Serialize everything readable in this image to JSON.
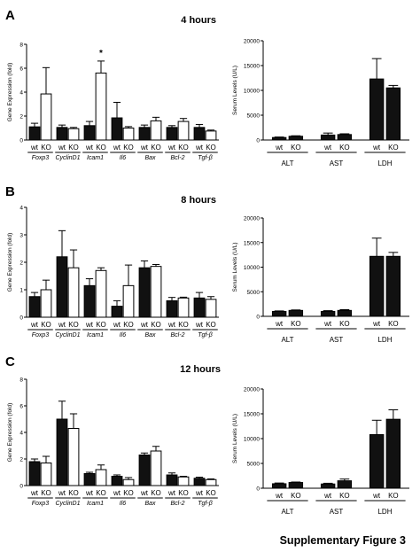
{
  "caption": "Supplementary Figure 3",
  "chart_data": [
    {
      "type": "bar",
      "panel": "A",
      "title": "4 hours",
      "ylabel": "Gene Expression (fold)",
      "ylim": [
        0,
        8
      ],
      "yticks": [
        "0",
        "2",
        "4",
        "6",
        "8"
      ],
      "genes": [
        "Foxp3",
        "CyclinD1",
        "Icam1",
        "Il6",
        "Bax",
        "Bcl-2",
        "Tgf-β"
      ],
      "pair_labels": [
        "wt",
        "KO"
      ],
      "series": [
        {
          "name": "wt",
          "values": [
            1.1,
            1.05,
            1.2,
            1.85,
            1.05,
            1.05,
            1.05
          ],
          "errors": [
            0.3,
            0.2,
            0.35,
            1.3,
            0.2,
            0.15,
            0.25
          ]
        },
        {
          "name": "KO",
          "values": [
            3.85,
            0.95,
            5.6,
            1.0,
            1.6,
            1.55,
            0.75
          ],
          "errors": [
            2.2,
            0.1,
            1.0,
            0.12,
            0.3,
            0.25,
            0.08
          ]
        }
      ],
      "annotations": [
        {
          "gene": "Icam1",
          "series": "KO",
          "text": "*"
        }
      ]
    },
    {
      "type": "bar",
      "panel": "A",
      "ylabel": "Serum Levels (U/L)",
      "ylim": [
        0,
        20000
      ],
      "yticks": [
        "0",
        "5000",
        "10000",
        "15000",
        "20000"
      ],
      "groups": [
        "ALT",
        "AST",
        "LDH"
      ],
      "pair_labels": [
        "wt",
        "KO"
      ],
      "series": [
        {
          "name": "wt",
          "values": [
            500,
            1000,
            12300
          ],
          "errors": [
            100,
            400,
            4100
          ]
        },
        {
          "name": "KO",
          "values": [
            750,
            1100,
            10500
          ],
          "errors": [
            100,
            150,
            500
          ]
        }
      ]
    },
    {
      "type": "bar",
      "panel": "B",
      "title": "8 hours",
      "ylabel": "Gene Expression (fold)",
      "ylim": [
        0,
        4
      ],
      "yticks": [
        "0",
        "1",
        "2",
        "3",
        "4"
      ],
      "genes": [
        "Foxp3",
        "CyclinD1",
        "Icam1",
        "Il6",
        "Bax",
        "Bcl-2",
        "Tgf-β"
      ],
      "pair_labels": [
        "wt",
        "KO"
      ],
      "series": [
        {
          "name": "wt",
          "values": [
            0.75,
            2.2,
            1.15,
            0.4,
            1.8,
            0.6,
            0.7
          ],
          "errors": [
            0.15,
            0.95,
            0.25,
            0.2,
            0.25,
            0.12,
            0.2
          ]
        },
        {
          "name": "KO",
          "values": [
            1.0,
            1.8,
            1.7,
            1.15,
            1.85,
            0.7,
            0.65
          ],
          "errors": [
            0.35,
            0.65,
            0.1,
            0.75,
            0.07,
            0.03,
            0.1
          ]
        }
      ]
    },
    {
      "type": "bar",
      "panel": "B",
      "ylabel": "Serum Levels (U/L)",
      "ylim": [
        0,
        20000
      ],
      "yticks": [
        "0",
        "5000",
        "10000",
        "15000",
        "20000"
      ],
      "groups": [
        "ALT",
        "AST",
        "LDH"
      ],
      "pair_labels": [
        "wt",
        "KO"
      ],
      "series": [
        {
          "name": "wt",
          "values": [
            1000,
            1000,
            12200
          ],
          "errors": [
            100,
            150,
            3700
          ]
        },
        {
          "name": "KO",
          "values": [
            1200,
            1200,
            12200
          ],
          "errors": [
            100,
            150,
            800
          ]
        }
      ]
    },
    {
      "type": "bar",
      "panel": "C",
      "title": "12 hours",
      "ylabel": "Gene Expression (fold)",
      "ylim": [
        0,
        8
      ],
      "yticks": [
        "0",
        "2",
        "4",
        "6",
        "8"
      ],
      "genes": [
        "Foxp3",
        "CyclinD1",
        "Icam1",
        "Il6",
        "Bax",
        "Bcl-2",
        "Tgf-β"
      ],
      "pair_labels": [
        "wt",
        "KO"
      ],
      "series": [
        {
          "name": "wt",
          "values": [
            1.8,
            5.0,
            0.9,
            0.7,
            2.3,
            0.8,
            0.55
          ],
          "errors": [
            0.2,
            1.35,
            0.1,
            0.1,
            0.15,
            0.15,
            0.08
          ]
        },
        {
          "name": "KO",
          "values": [
            1.7,
            4.3,
            1.2,
            0.45,
            2.6,
            0.65,
            0.45
          ],
          "errors": [
            0.5,
            1.1,
            0.35,
            0.15,
            0.35,
            0.05,
            0.05
          ]
        }
      ]
    },
    {
      "type": "bar",
      "panel": "C",
      "ylabel": "Serum Levels (U/L)",
      "ylim": [
        0,
        20000
      ],
      "yticks": [
        "0",
        "5000",
        "10000",
        "15000",
        "20000"
      ],
      "groups": [
        "ALT",
        "AST",
        "LDH"
      ],
      "pair_labels": [
        "wt",
        "KO"
      ],
      "series": [
        {
          "name": "wt",
          "values": [
            900,
            850,
            10800
          ],
          "errors": [
            150,
            150,
            2900
          ]
        },
        {
          "name": "KO",
          "values": [
            1150,
            1500,
            13900
          ],
          "errors": [
            100,
            350,
            1900
          ]
        }
      ]
    }
  ]
}
